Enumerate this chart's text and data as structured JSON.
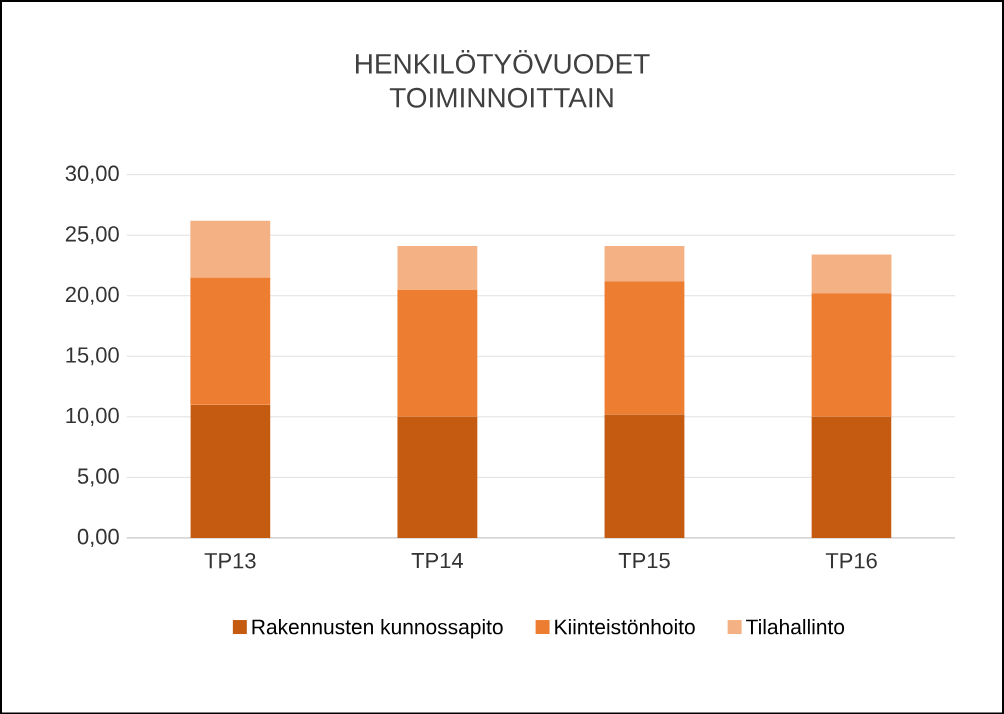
{
  "chart_data": {
    "type": "bar",
    "title": "HENKILÖTYÖVUODET TOIMINNOITTAIN",
    "stacked": true,
    "grid": "y",
    "legend": "bottom",
    "categories": [
      "TP13",
      "TP14",
      "TP15",
      "TP16"
    ],
    "series": [
      {
        "name": "Rakennusten kunnossapito",
        "color": "#c55a11",
        "values": [
          11.0,
          10.0,
          10.2,
          10.0
        ]
      },
      {
        "name": "Kiinteistönhoito",
        "color": "#ed7d31",
        "values": [
          10.5,
          10.5,
          11.0,
          10.2
        ]
      },
      {
        "name": "Tilahallinto",
        "color": "#f4b183",
        "values": [
          4.7,
          3.6,
          2.9,
          3.2
        ]
      }
    ],
    "ylim": [
      0,
      30
    ],
    "yticks": [
      {
        "value": 0,
        "label": "0,00"
      },
      {
        "value": 5,
        "label": "5,00"
      },
      {
        "value": 10,
        "label": "10,00"
      },
      {
        "value": 15,
        "label": "15,00"
      },
      {
        "value": 20,
        "label": "20,00"
      },
      {
        "value": 25,
        "label": "25,00"
      },
      {
        "value": 30,
        "label": "30,00"
      }
    ]
  }
}
